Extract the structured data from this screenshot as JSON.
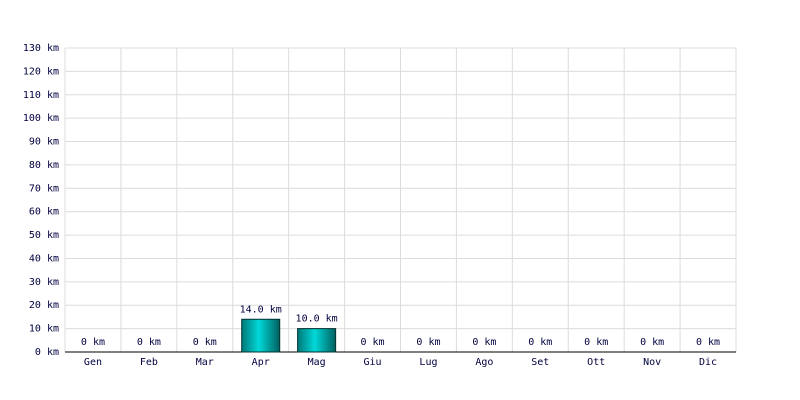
{
  "chart_data": {
    "type": "bar",
    "categories": [
      "Gen",
      "Feb",
      "Mar",
      "Apr",
      "Mag",
      "Giu",
      "Lug",
      "Ago",
      "Set",
      "Ott",
      "Nov",
      "Dic"
    ],
    "values": [
      0,
      0,
      0,
      14,
      10,
      0,
      0,
      0,
      0,
      0,
      0,
      0
    ],
    "value_labels": [
      "0 km",
      "0 km",
      "0 km",
      "14.0 km",
      "10.0 km",
      "0 km",
      "0 km",
      "0 km",
      "0 km",
      "0 km",
      "0 km",
      "0 km"
    ],
    "color": "#00d8d8",
    "ylim": [
      0,
      130
    ],
    "yticks": [
      {
        "value": 0,
        "label": "0 km"
      },
      {
        "value": 10,
        "label": "10 km"
      },
      {
        "value": 20,
        "label": "20 km"
      },
      {
        "value": 30,
        "label": "30 km"
      },
      {
        "value": 40,
        "label": "40 km"
      },
      {
        "value": 50,
        "label": "50 km"
      },
      {
        "value": 60,
        "label": "60 km"
      },
      {
        "value": 70,
        "label": "70 km"
      },
      {
        "value": 80,
        "label": "80 km"
      },
      {
        "value": 90,
        "label": "90 km"
      },
      {
        "value": 100,
        "label": "100 km"
      },
      {
        "value": 110,
        "label": "110 km"
      },
      {
        "value": 120,
        "label": "120 km"
      },
      {
        "value": 130,
        "label": "130 km"
      }
    ],
    "grid": true
  }
}
